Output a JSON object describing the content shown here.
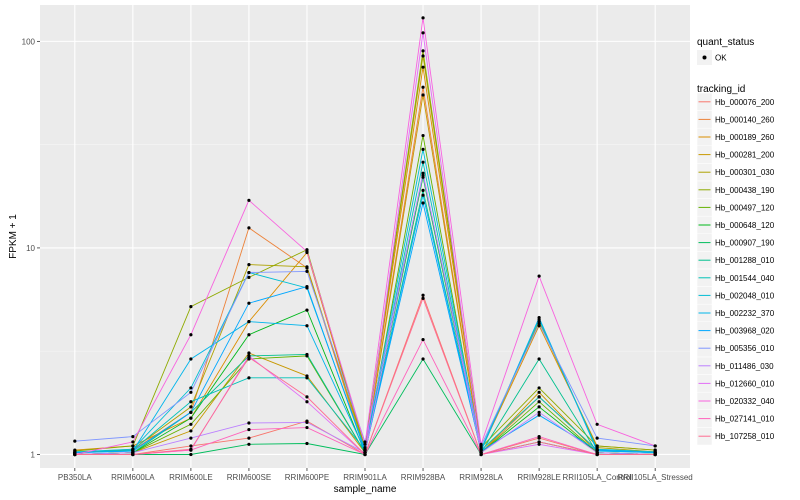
{
  "chart_data": {
    "type": "line",
    "title": "",
    "xlabel": "sample_name",
    "ylabel": "FPKM + 1",
    "y_scale": "log10",
    "ylim": [
      0.86,
      150
    ],
    "y_ticks": [
      1,
      10,
      100
    ],
    "y_tick_labels": [
      "1",
      "10",
      "100"
    ],
    "grid": true,
    "legend_position": "right",
    "categories": [
      "PB350LA",
      "RRIM600LA",
      "RRIM600LE",
      "RRIM600SE",
      "RRIM600PE",
      "RRIM901LA",
      "RRIM928BA",
      "RRIM928LA",
      "RRIM928LE",
      "RRII105LA_Control",
      "RRII105LA_Stressed"
    ],
    "point_legend": {
      "title": "quant_status",
      "label": "OK"
    },
    "series_legend_title": "tracking_id",
    "series": [
      {
        "name": "Hb_000076_200",
        "color": "#F8766D",
        "values": [
          1.0,
          1.0,
          1.1,
          1.2,
          1.45,
          1.0,
          5.9,
          1.0,
          1.2,
          1.0,
          1.0
        ]
      },
      {
        "name": "Hb_000140_260",
        "color": "#EC8239",
        "values": [
          1.02,
          1.05,
          1.6,
          12.5,
          8.0,
          1.02,
          60.0,
          1.02,
          1.9,
          1.05,
          1.02
        ]
      },
      {
        "name": "Hb_000189_260",
        "color": "#DB8E00",
        "values": [
          1.05,
          1.1,
          1.5,
          4.4,
          9.5,
          1.05,
          75.0,
          1.05,
          4.2,
          1.1,
          1.05
        ]
      },
      {
        "name": "Hb_000281_200",
        "color": "#C79800",
        "values": [
          1.0,
          1.02,
          1.3,
          3.1,
          2.4,
          1.02,
          55.0,
          1.02,
          2.0,
          1.02,
          1.0
        ]
      },
      {
        "name": "Hb_000301_030",
        "color": "#AEA200",
        "values": [
          1.02,
          1.06,
          1.7,
          8.3,
          8.1,
          1.06,
          85.0,
          1.06,
          4.4,
          1.08,
          1.03
        ]
      },
      {
        "name": "Hb_000438_190",
        "color": "#8FAA00",
        "values": [
          1.04,
          1.1,
          5.2,
          7.2,
          9.8,
          1.08,
          90.0,
          1.08,
          2.1,
          1.1,
          1.05
        ]
      },
      {
        "name": "Hb_000497_120",
        "color": "#64B200",
        "values": [
          1.0,
          1.02,
          1.4,
          2.9,
          3.0,
          1.02,
          35.0,
          1.02,
          1.8,
          1.02,
          1.0
        ]
      },
      {
        "name": "Hb_000648_120",
        "color": "#00B81B",
        "values": [
          1.0,
          1.02,
          1.5,
          3.8,
          5.0,
          1.02,
          22.0,
          1.02,
          1.7,
          1.02,
          1.0
        ]
      },
      {
        "name": "Hb_000907_190",
        "color": "#00BD5C",
        "values": [
          1.0,
          1.0,
          1.0,
          1.12,
          1.13,
          1.0,
          2.9,
          1.0,
          1.15,
          1.0,
          1.0
        ]
      },
      {
        "name": "Hb_001288_010",
        "color": "#00C08E",
        "values": [
          1.0,
          1.02,
          1.6,
          3.0,
          3.05,
          1.02,
          19.0,
          1.02,
          2.9,
          1.02,
          1.0
        ]
      },
      {
        "name": "Hb_001544_040",
        "color": "#00C1B7",
        "values": [
          1.02,
          1.05,
          1.8,
          2.35,
          2.35,
          1.05,
          26.0,
          1.05,
          1.9,
          1.05,
          1.02
        ]
      },
      {
        "name": "Hb_002048_010",
        "color": "#00BDD4",
        "values": [
          1.03,
          1.06,
          2.1,
          7.6,
          6.4,
          1.06,
          30.0,
          1.06,
          4.5,
          1.06,
          1.03
        ]
      },
      {
        "name": "Hb_002232_370",
        "color": "#00B5EB",
        "values": [
          1.02,
          1.04,
          2.9,
          4.4,
          4.2,
          1.04,
          18.0,
          1.04,
          4.6,
          1.04,
          1.02
        ]
      },
      {
        "name": "Hb_003968_020",
        "color": "#00A7FF",
        "values": [
          1.02,
          1.04,
          1.6,
          5.4,
          6.5,
          1.04,
          16.5,
          1.04,
          1.55,
          1.05,
          1.02
        ]
      },
      {
        "name": "Hb_005356_010",
        "color": "#7F96FF",
        "values": [
          1.16,
          1.22,
          2.0,
          7.6,
          7.7,
          1.15,
          22.5,
          1.1,
          4.3,
          1.2,
          1.1
        ]
      },
      {
        "name": "Hb_011486_030",
        "color": "#BC81FF",
        "values": [
          1.0,
          1.02,
          1.2,
          1.42,
          1.43,
          1.02,
          23.0,
          1.02,
          1.6,
          1.02,
          1.0
        ]
      },
      {
        "name": "Hb_012660_010",
        "color": "#E26EF7",
        "values": [
          1.0,
          1.0,
          1.05,
          3.0,
          1.8,
          1.0,
          110.0,
          1.0,
          1.12,
          1.0,
          1.0
        ]
      },
      {
        "name": "Hb_020332_040",
        "color": "#F863DF",
        "values": [
          1.0,
          1.15,
          3.8,
          17.0,
          9.6,
          1.12,
          130.0,
          1.12,
          7.3,
          1.4,
          1.1
        ]
      },
      {
        "name": "Hb_027141_010",
        "color": "#FF62BC",
        "values": [
          1.0,
          1.0,
          1.05,
          1.32,
          1.35,
          1.0,
          3.6,
          1.0,
          1.22,
          1.0,
          1.0
        ]
      },
      {
        "name": "Hb_107258_010",
        "color": "#FF6C91",
        "values": [
          1.0,
          1.0,
          1.06,
          2.95,
          1.9,
          1.0,
          5.7,
          1.0,
          1.15,
          1.0,
          1.0
        ]
      }
    ]
  }
}
